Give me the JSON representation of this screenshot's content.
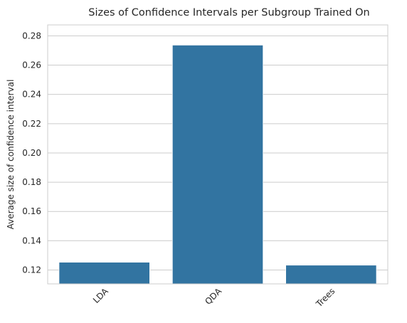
{
  "chart_data": {
    "type": "bar",
    "title": "Sizes of Confidence Intervals per Subgroup Trained On",
    "xlabel": "",
    "ylabel": "Average size of confidence interval",
    "categories": [
      "LDA",
      "QDA",
      "Trees"
    ],
    "values": [
      0.1253,
      0.2737,
      0.1233
    ],
    "ylim": [
      0.1105,
      0.2875
    ],
    "yticks": [
      0.12,
      0.14,
      0.16,
      0.18,
      0.2,
      0.22,
      0.24,
      0.26,
      0.28
    ],
    "ytick_labels": [
      "0.12",
      "0.14",
      "0.16",
      "0.18",
      "0.20",
      "0.22",
      "0.24",
      "0.26",
      "0.28"
    ],
    "grid": "horizontal",
    "bar_color": "#3274a1",
    "xtick_rotation": "45 degrees"
  }
}
